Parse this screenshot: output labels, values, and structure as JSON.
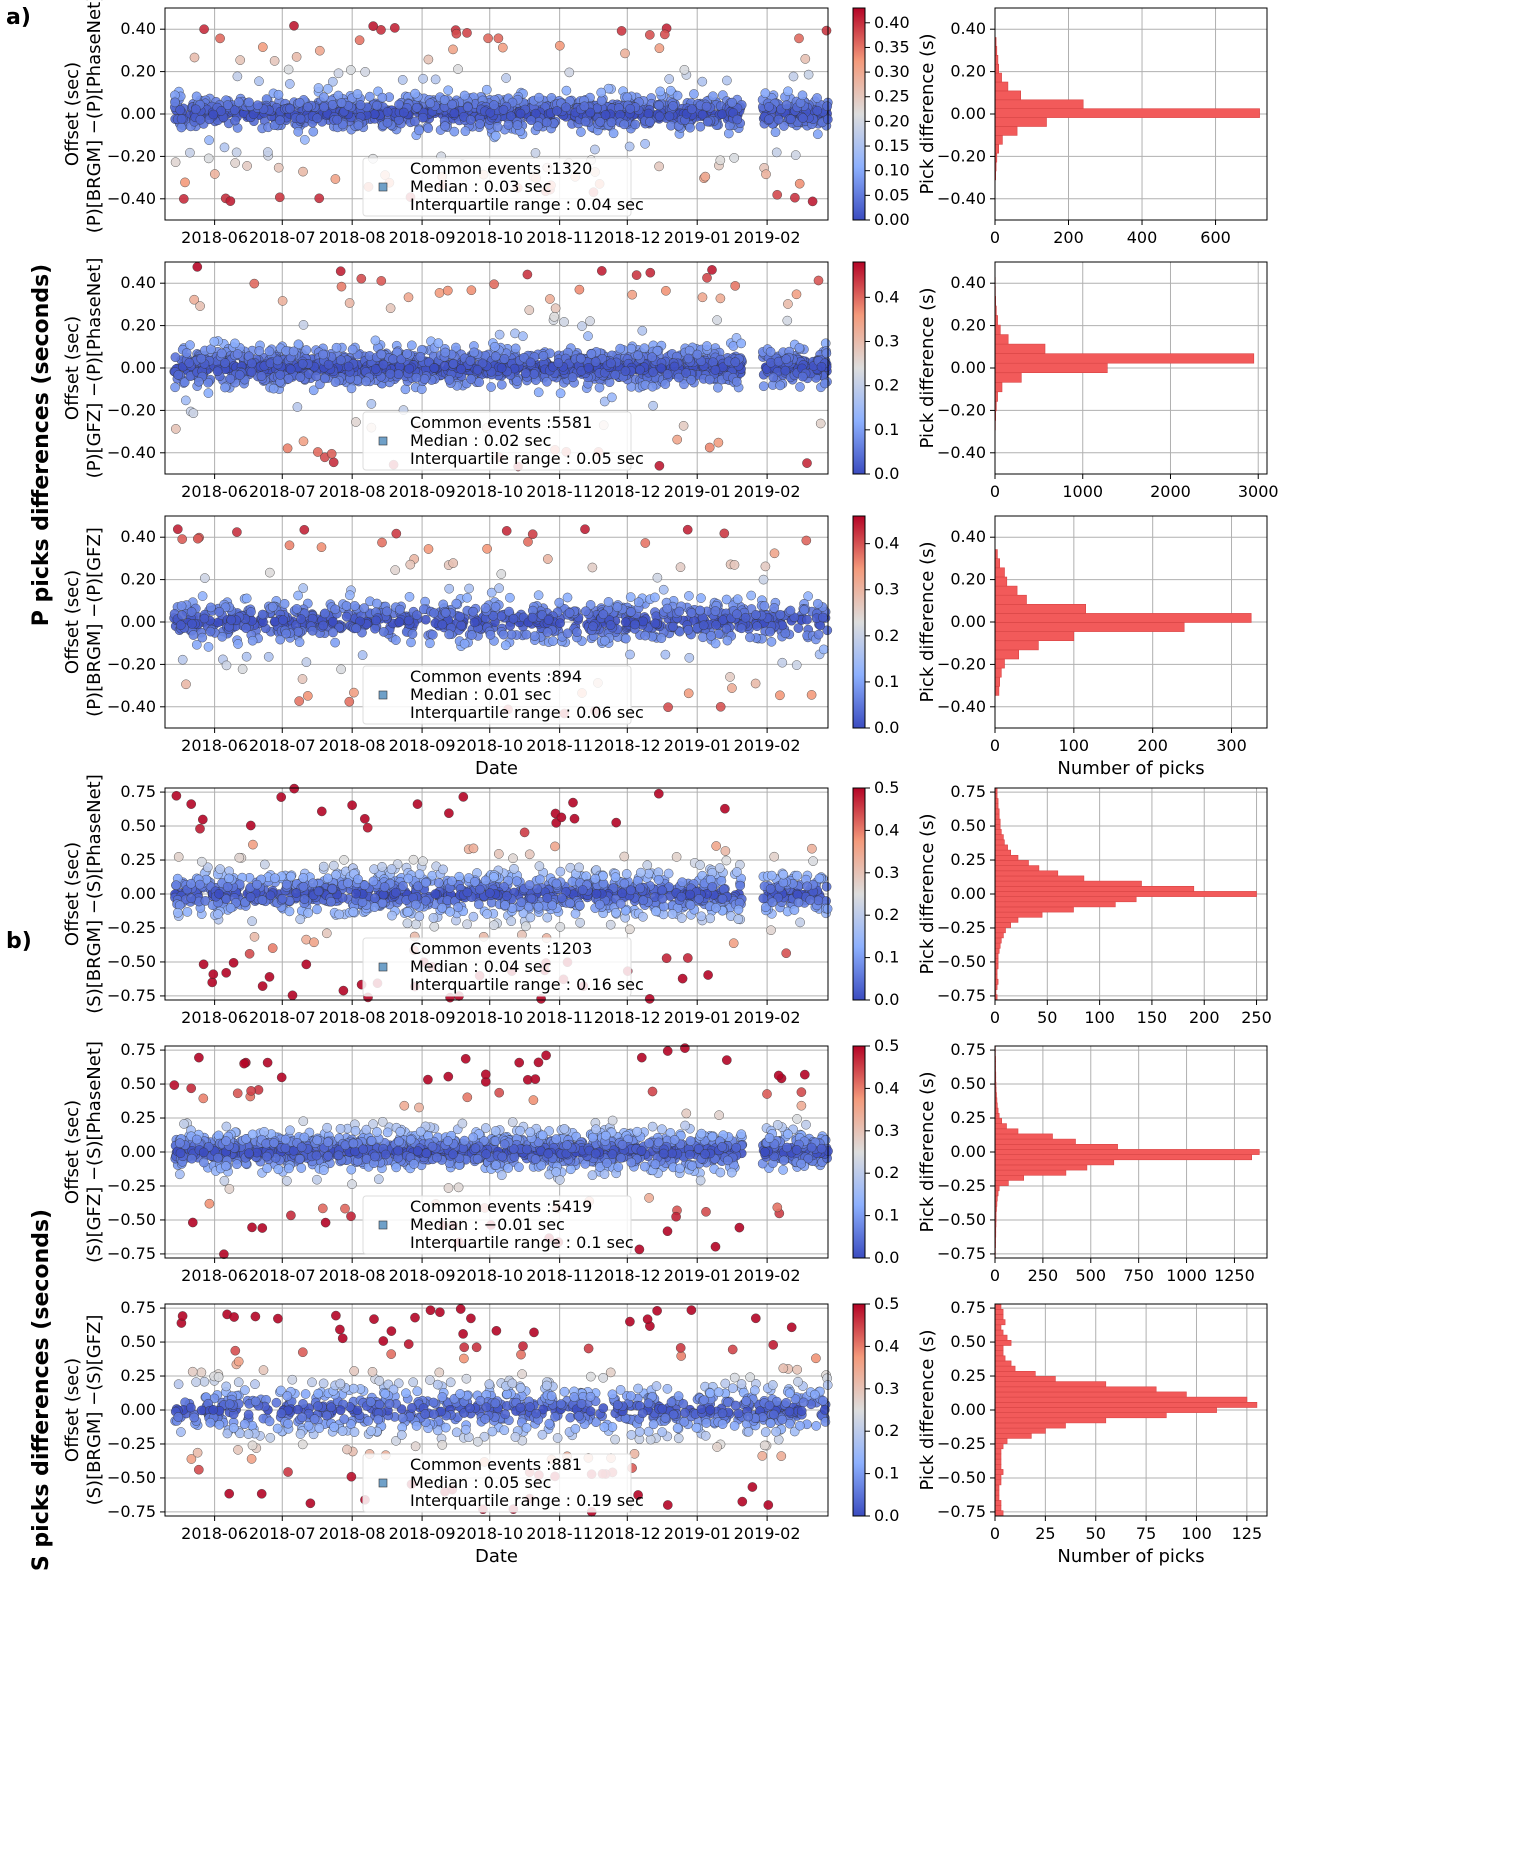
{
  "panel_labels": {
    "a": "a)",
    "b": "b)"
  },
  "group_labels": {
    "p": "P picks differences (seconds)",
    "s": "S picks differences (seconds)"
  },
  "colors": {
    "cmap_low": "#3b4cc0",
    "cmap_mid": "#dddddd",
    "cmap_high": "#b40426",
    "bars": "#f25a5a"
  },
  "chart_data": [
    {
      "type": "scatter",
      "id": "p-brgm-phasenet",
      "ylabel_lines": [
        "Offset (sec)",
        "(P)[BRGM] −(P)[PhaseNet]"
      ],
      "xlabel": "",
      "x_ticks": [
        "2018-06",
        "2018-07",
        "2018-08",
        "2018-09",
        "2018-10",
        "2018-11",
        "2018-12",
        "2019-01",
        "2019-02"
      ],
      "xlim": [
        "2018-05-10",
        "2019-02-28"
      ],
      "ylim": [
        -0.5,
        0.5
      ],
      "y_ticks": [
        -0.4,
        -0.2,
        0.0,
        0.2,
        0.4
      ],
      "colorbar": {
        "min": 0.0,
        "max": 0.43,
        "ticks": [
          0.0,
          0.05,
          0.1,
          0.15,
          0.2,
          0.25,
          0.3,
          0.35,
          0.4
        ],
        "decimals": 2
      },
      "legend": {
        "events": "Common events :1320",
        "median": "Median : 0.03 sec",
        "iqr": "Interquartile range : 0.04 sec"
      },
      "gaps": [
        [
          "2019-01-21",
          "2019-01-30"
        ]
      ],
      "n_points": 1320,
      "spread": 0.04,
      "outlier_frac": 0.08,
      "outlier_amp": 0.42,
      "histogram": {
        "type": "bar",
        "ylabel": "Pick difference (s)",
        "xlabel": "",
        "xlim": [
          0,
          740
        ],
        "x_ticks": [
          0,
          200,
          400,
          600
        ],
        "ylim": [
          -0.5,
          0.5
        ],
        "y_ticks": [
          -0.4,
          -0.2,
          0.0,
          0.2,
          0.4
        ],
        "bin_width": 0.042,
        "bin_centers": [
          -0.29,
          -0.248,
          -0.206,
          -0.164,
          -0.122,
          -0.08,
          -0.038,
          0.004,
          0.046,
          0.088,
          0.13,
          0.172,
          0.214,
          0.256,
          0.298,
          0.34
        ],
        "counts": [
          2,
          3,
          5,
          10,
          20,
          60,
          140,
          720,
          240,
          70,
          35,
          18,
          10,
          8,
          5,
          3
        ]
      }
    },
    {
      "type": "scatter",
      "id": "p-gfz-phasenet",
      "ylabel_lines": [
        "Offset (sec)",
        "(P)[GFZ] −(P)[PhaseNet]"
      ],
      "xlabel": "",
      "x_ticks": [
        "2018-06",
        "2018-07",
        "2018-08",
        "2018-09",
        "2018-10",
        "2018-11",
        "2018-12",
        "2019-01",
        "2019-02"
      ],
      "xlim": [
        "2018-05-10",
        "2019-02-28"
      ],
      "ylim": [
        -0.5,
        0.5
      ],
      "y_ticks": [
        -0.4,
        -0.2,
        0.0,
        0.2,
        0.4
      ],
      "colorbar": {
        "min": 0.0,
        "max": 0.48,
        "ticks": [
          0.0,
          0.1,
          0.2,
          0.3,
          0.4
        ],
        "decimals": 1
      },
      "legend": {
        "events": "Common events :5581",
        "median": "Median : 0.02 sec",
        "iqr": "Interquartile range : 0.05 sec"
      },
      "gaps": [
        [
          "2019-01-21",
          "2019-01-30"
        ]
      ],
      "n_points": 5581,
      "spread": 0.045,
      "outlier_frac": 0.05,
      "outlier_amp": 0.48,
      "histogram": {
        "type": "bar",
        "ylabel": "Pick difference (s)",
        "xlabel": "",
        "xlim": [
          0,
          3100
        ],
        "x_ticks": [
          0,
          1000,
          2000,
          3000
        ],
        "ylim": [
          -0.5,
          0.5
        ],
        "y_ticks": [
          -0.4,
          -0.2,
          0.0,
          0.2,
          0.4
        ],
        "bin_width": 0.045,
        "bin_centers": [
          -0.315,
          -0.27,
          -0.225,
          -0.18,
          -0.135,
          -0.09,
          -0.045,
          0.0,
          0.045,
          0.09,
          0.135,
          0.18,
          0.225,
          0.27,
          0.315,
          0.36,
          0.405
        ],
        "counts": [
          2,
          4,
          8,
          15,
          30,
          80,
          300,
          1280,
          2950,
          570,
          150,
          60,
          30,
          15,
          8,
          5,
          3
        ]
      }
    },
    {
      "type": "scatter",
      "id": "p-brgm-gfz",
      "ylabel_lines": [
        "Offset (sec)",
        "(P)[BRGM] −(P)[GFZ]"
      ],
      "xlabel": "Date",
      "x_ticks": [
        "2018-06",
        "2018-07",
        "2018-08",
        "2018-09",
        "2018-10",
        "2018-11",
        "2018-12",
        "2019-01",
        "2019-02"
      ],
      "xlim": [
        "2018-05-10",
        "2019-02-28"
      ],
      "ylim": [
        -0.5,
        0.5
      ],
      "y_ticks": [
        -0.4,
        -0.2,
        0.0,
        0.2,
        0.4
      ],
      "colorbar": {
        "min": 0.0,
        "max": 0.46,
        "ticks": [
          0.0,
          0.1,
          0.2,
          0.3,
          0.4
        ],
        "decimals": 1
      },
      "legend": {
        "events": "Common events :894",
        "median": "Median : 0.01 sec",
        "iqr": "Interquartile range : 0.06 sec"
      },
      "gaps": [],
      "n_points": 894,
      "spread": 0.05,
      "outlier_frac": 0.08,
      "outlier_amp": 0.44,
      "histogram": {
        "type": "bar",
        "ylabel": "Pick difference (s)",
        "xlabel": "Number of picks",
        "xlim": [
          0,
          345
        ],
        "x_ticks": [
          0,
          100,
          200,
          300
        ],
        "ylim": [
          -0.5,
          0.5
        ],
        "y_ticks": [
          -0.4,
          -0.2,
          0.0,
          0.2,
          0.4
        ],
        "bin_width": 0.043,
        "bin_centers": [
          -0.325,
          -0.282,
          -0.239,
          -0.196,
          -0.153,
          -0.11,
          -0.067,
          -0.024,
          0.019,
          0.062,
          0.105,
          0.148,
          0.191,
          0.234,
          0.277,
          0.32
        ],
        "counts": [
          5,
          6,
          8,
          12,
          30,
          55,
          100,
          240,
          325,
          115,
          40,
          28,
          15,
          12,
          6,
          3
        ]
      }
    },
    {
      "type": "scatter",
      "id": "s-brgm-phasenet",
      "ylabel_lines": [
        "Offset (sec)",
        "(S)[BRGM] −(S)[PhaseNet]"
      ],
      "xlabel": "",
      "x_ticks": [
        "2018-06",
        "2018-07",
        "2018-08",
        "2018-09",
        "2018-10",
        "2018-11",
        "2018-12",
        "2019-01",
        "2019-02"
      ],
      "xlim": [
        "2018-05-10",
        "2019-02-28"
      ],
      "ylim": [
        -0.78,
        0.78
      ],
      "y_ticks": [
        -0.75,
        -0.5,
        -0.25,
        0.0,
        0.25,
        0.5,
        0.75
      ],
      "colorbar": {
        "min": 0.0,
        "max": 0.5,
        "ticks": [
          0.0,
          0.1,
          0.2,
          0.3,
          0.4,
          0.5
        ],
        "decimals": 1
      },
      "legend": {
        "events": "Common events :1203",
        "median": "Median : 0.04 sec",
        "iqr": "Interquartile range : 0.16 sec"
      },
      "gaps": [
        [
          "2019-01-21",
          "2019-01-30"
        ]
      ],
      "n_points": 1203,
      "spread": 0.09,
      "outlier_frac": 0.08,
      "outlier_amp": 0.78,
      "histogram": {
        "type": "bar",
        "ylabel": "Pick difference (s)",
        "xlabel": "",
        "xlim": [
          0,
          260
        ],
        "x_ticks": [
          0,
          50,
          100,
          150,
          200,
          250
        ],
        "ylim": [
          -0.78,
          0.78
        ],
        "y_ticks": [
          -0.75,
          -0.5,
          -0.25,
          0.0,
          0.25,
          0.5,
          0.75
        ],
        "bin_width": 0.038,
        "bin_centers": [
          -0.76,
          -0.722,
          -0.684,
          -0.646,
          -0.608,
          -0.57,
          -0.532,
          -0.494,
          -0.456,
          -0.418,
          -0.38,
          -0.342,
          -0.304,
          -0.266,
          -0.228,
          -0.19,
          -0.152,
          -0.114,
          -0.076,
          -0.038,
          0.0,
          0.038,
          0.076,
          0.114,
          0.152,
          0.19,
          0.228,
          0.266,
          0.304,
          0.342,
          0.38,
          0.418,
          0.456,
          0.494,
          0.532,
          0.57,
          0.608,
          0.646,
          0.684,
          0.722,
          0.76
        ],
        "counts": [
          2,
          1,
          2,
          3,
          2,
          2,
          3,
          3,
          3,
          4,
          5,
          6,
          8,
          10,
          15,
          22,
          45,
          75,
          115,
          135,
          250,
          190,
          140,
          85,
          60,
          42,
          32,
          22,
          15,
          12,
          9,
          8,
          6,
          5,
          5,
          4,
          4,
          3,
          3,
          2,
          2
        ]
      }
    },
    {
      "type": "scatter",
      "id": "s-gfz-phasenet",
      "ylabel_lines": [
        "Offset (sec)",
        "(S)[GFZ] −(S)[PhaseNet]"
      ],
      "xlabel": "",
      "x_ticks": [
        "2018-06",
        "2018-07",
        "2018-08",
        "2018-09",
        "2018-10",
        "2018-11",
        "2018-12",
        "2019-01",
        "2019-02"
      ],
      "xlim": [
        "2018-05-10",
        "2019-02-28"
      ],
      "ylim": [
        -0.78,
        0.78
      ],
      "y_ticks": [
        -0.75,
        -0.5,
        -0.25,
        0.0,
        0.25,
        0.5,
        0.75
      ],
      "colorbar": {
        "min": 0.0,
        "max": 0.5,
        "ticks": [
          0.0,
          0.1,
          0.2,
          0.3,
          0.4,
          0.5
        ],
        "decimals": 1
      },
      "legend": {
        "events": "Common events :5419",
        "median": "Median : −0.01 sec",
        "iqr": "Interquartile range : 0.1 sec"
      },
      "gaps": [
        [
          "2019-01-21",
          "2019-01-30"
        ]
      ],
      "n_points": 5419,
      "spread": 0.07,
      "outlier_frac": 0.06,
      "outlier_amp": 0.78,
      "histogram": {
        "type": "bar",
        "ylabel": "Pick difference (s)",
        "xlabel": "",
        "xlim": [
          0,
          1420
        ],
        "x_ticks": [
          0,
          250,
          500,
          750,
          1000,
          1250
        ],
        "ylim": [
          -0.78,
          0.78
        ],
        "y_ticks": [
          -0.75,
          -0.5,
          -0.25,
          0.0,
          0.25,
          0.5,
          0.75
        ],
        "bin_width": 0.038,
        "bin_centers": [
          -0.76,
          -0.722,
          -0.684,
          -0.646,
          -0.608,
          -0.57,
          -0.532,
          -0.494,
          -0.456,
          -0.418,
          -0.38,
          -0.342,
          -0.304,
          -0.266,
          -0.228,
          -0.19,
          -0.152,
          -0.114,
          -0.076,
          -0.038,
          0.0,
          0.038,
          0.076,
          0.114,
          0.152,
          0.19,
          0.228,
          0.266,
          0.304,
          0.342,
          0.38,
          0.418,
          0.456,
          0.494,
          0.532,
          0.57,
          0.608,
          0.646,
          0.684,
          0.722,
          0.76
        ],
        "counts": [
          2,
          2,
          3,
          3,
          4,
          4,
          5,
          6,
          6,
          8,
          10,
          12,
          16,
          22,
          70,
          150,
          370,
          480,
          620,
          1340,
          1380,
          640,
          420,
          300,
          120,
          60,
          35,
          22,
          16,
          12,
          10,
          8,
          6,
          5,
          4,
          4,
          3,
          3,
          3,
          2,
          2
        ]
      }
    },
    {
      "type": "scatter",
      "id": "s-brgm-gfz",
      "ylabel_lines": [
        "Offset (sec)",
        "(S)[BRGM] −(S)[GFZ]"
      ],
      "xlabel": "Date",
      "x_ticks": [
        "2018-06",
        "2018-07",
        "2018-08",
        "2018-09",
        "2018-10",
        "2018-11",
        "2018-12",
        "2019-01",
        "2019-02"
      ],
      "xlim": [
        "2018-05-10",
        "2019-02-28"
      ],
      "ylim": [
        -0.78,
        0.78
      ],
      "y_ticks": [
        -0.75,
        -0.5,
        -0.25,
        0.0,
        0.25,
        0.5,
        0.75
      ],
      "colorbar": {
        "min": 0.0,
        "max": 0.5,
        "ticks": [
          0.0,
          0.1,
          0.2,
          0.3,
          0.4,
          0.5
        ],
        "decimals": 1
      },
      "legend": {
        "events": "Common events :881",
        "median": "Median : 0.05 sec",
        "iqr": "Interquartile range : 0.19 sec"
      },
      "gaps": [],
      "n_points": 881,
      "spread": 0.1,
      "outlier_frac": 0.12,
      "outlier_amp": 0.75,
      "histogram": {
        "type": "bar",
        "ylabel": "Pick difference (s)",
        "xlabel": "Number of picks",
        "xlim": [
          0,
          135
        ],
        "x_ticks": [
          0,
          25,
          50,
          75,
          100,
          125
        ],
        "ylim": [
          -0.78,
          0.78
        ],
        "y_ticks": [
          -0.75,
          -0.5,
          -0.25,
          0.0,
          0.25,
          0.5,
          0.75
        ],
        "bin_width": 0.038,
        "bin_centers": [
          -0.76,
          -0.722,
          -0.684,
          -0.646,
          -0.608,
          -0.57,
          -0.532,
          -0.494,
          -0.456,
          -0.418,
          -0.38,
          -0.342,
          -0.304,
          -0.266,
          -0.228,
          -0.19,
          -0.152,
          -0.114,
          -0.076,
          -0.038,
          0.0,
          0.038,
          0.076,
          0.114,
          0.152,
          0.19,
          0.228,
          0.266,
          0.304,
          0.342,
          0.38,
          0.418,
          0.456,
          0.494,
          0.532,
          0.57,
          0.608,
          0.646,
          0.684,
          0.722,
          0.76
        ],
        "counts": [
          4,
          3,
          3,
          2,
          2,
          2,
          3,
          3,
          4,
          3,
          3,
          3,
          3,
          4,
          6,
          18,
          25,
          35,
          55,
          85,
          110,
          130,
          125,
          95,
          80,
          55,
          30,
          20,
          10,
          8,
          5,
          4,
          4,
          8,
          6,
          4,
          3,
          5,
          4,
          4,
          3
        ]
      }
    }
  ]
}
